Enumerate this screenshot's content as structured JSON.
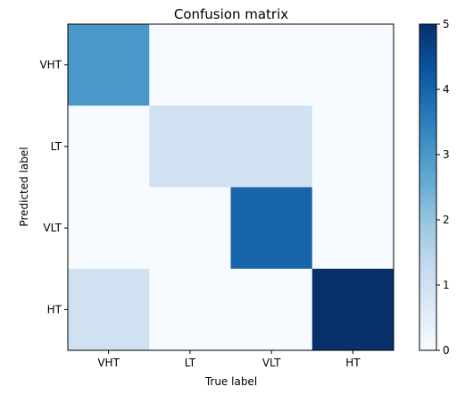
{
  "chart_data": {
    "type": "heatmap",
    "title": "Confusion matrix",
    "xlabel": "True label",
    "ylabel": "Predicted label",
    "x_categories": [
      "VHT",
      "LT",
      "VLT",
      "HT"
    ],
    "y_categories": [
      "VHT",
      "LT",
      "VLT",
      "HT"
    ],
    "matrix": [
      [
        3,
        0,
        0,
        0
      ],
      [
        0,
        1,
        1,
        0
      ],
      [
        0,
        0,
        4,
        0
      ],
      [
        1,
        0,
        0,
        5
      ]
    ],
    "colorbar": {
      "min": 0,
      "max": 5,
      "ticks": [
        "0",
        "1",
        "2",
        "3",
        "4",
        "5"
      ],
      "colormap": "Blues"
    }
  }
}
